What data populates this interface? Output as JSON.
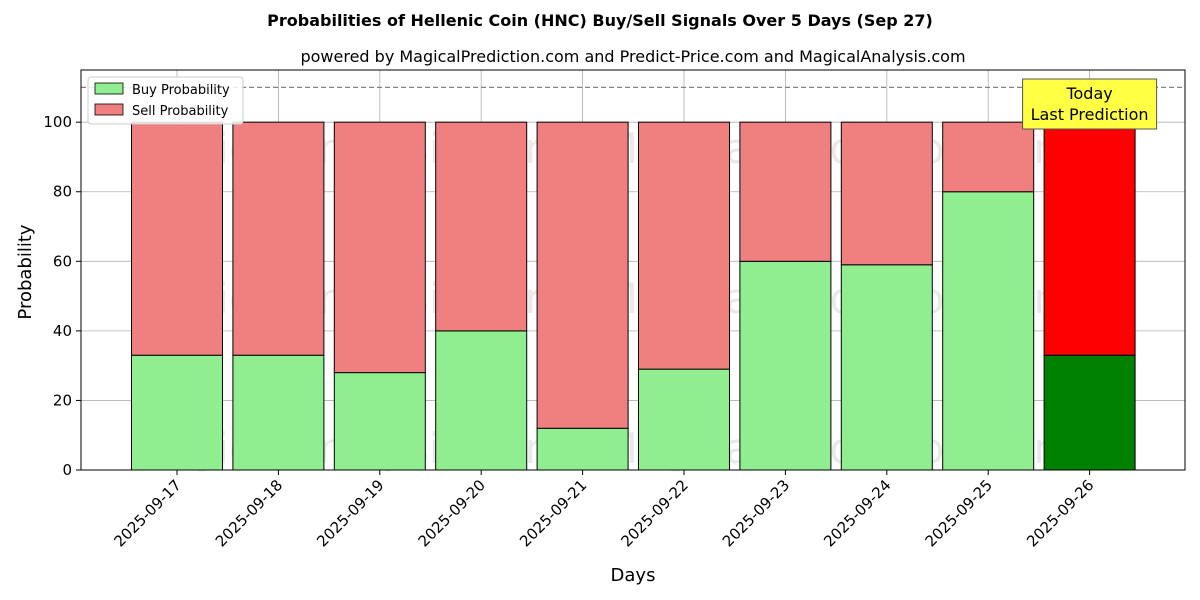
{
  "chart_data": {
    "type": "bar",
    "stacked": true,
    "title": "Probabilities of Hellenic Coin (HNC) Buy/Sell Signals Over 5 Days (Sep 27)",
    "subtitle": "powered by MagicalPrediction.com and Predict-Price.com and MagicalAnalysis.com",
    "xlabel": "Days",
    "ylabel": "Probability",
    "ylim": [
      0,
      115
    ],
    "yticks": [
      0,
      20,
      40,
      60,
      80,
      100
    ],
    "grid": true,
    "reference_line": 110,
    "legend_placement": "top-left",
    "categories": [
      "2025-09-17",
      "2025-09-18",
      "2025-09-19",
      "2025-09-20",
      "2025-09-21",
      "2025-09-22",
      "2025-09-23",
      "2025-09-24",
      "2025-09-25",
      "2025-09-26"
    ],
    "series": [
      {
        "name": "Buy Probability",
        "color": "#90ee90",
        "highlight_color": "#008000",
        "values": [
          33,
          33,
          28,
          40,
          12,
          29,
          60,
          59,
          80,
          33
        ]
      },
      {
        "name": "Sell Probability",
        "color": "#f08080",
        "highlight_color": "#ff0000",
        "values": [
          67,
          67,
          72,
          60,
          88,
          71,
          40,
          41,
          20,
          67
        ]
      }
    ],
    "highlight_index": 9,
    "annotation": {
      "lines": [
        "Today",
        "Last Prediction"
      ],
      "background": "#ffff44"
    },
    "watermarks": [
      "MagicalAnalysis.com",
      "MagicalPrediction.com"
    ]
  }
}
